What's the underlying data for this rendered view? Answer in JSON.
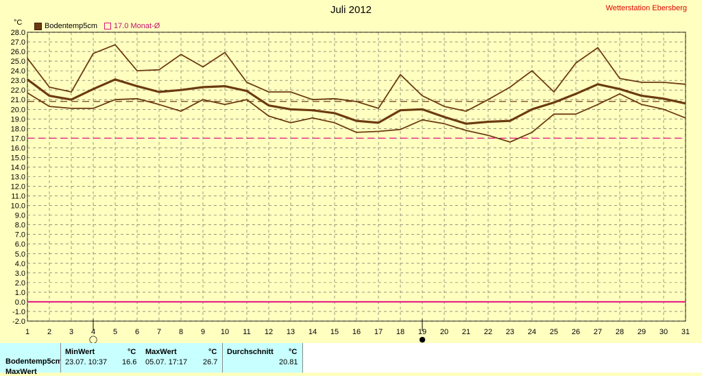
{
  "title": "Juli 2012",
  "station": "Wetterstation Ebersberg",
  "unit_label": "°C",
  "legend": {
    "series": "Bodentemp5cm",
    "monthly_avg": "17.0 Monat-Ø"
  },
  "colors": {
    "background": "#ffffc0",
    "series": "#6b3a10",
    "monthly_avg_line": "#e0107f",
    "zero_line": "#e0107f",
    "avg_line": "#6b3a10",
    "stats_bg": "#c8ffff"
  },
  "markers": {
    "day4": "◯",
    "day19": "●"
  },
  "stats": {
    "row_label": "Bodentemp5cm",
    "row2_label": "MaxWert",
    "min": {
      "header": "MinWert",
      "unit": "°C",
      "when": "23.07.  10:37",
      "value": "16.6"
    },
    "max": {
      "header": "MaxWert",
      "unit": "°C",
      "when": "05.07.  17:17",
      "value": "26.7"
    },
    "avg": {
      "header": "Durchschnitt",
      "unit": "°C",
      "value": "20.81"
    }
  },
  "chart_data": {
    "type": "line",
    "x": [
      1,
      2,
      3,
      4,
      5,
      6,
      7,
      8,
      9,
      10,
      11,
      12,
      13,
      14,
      15,
      16,
      17,
      18,
      19,
      20,
      21,
      22,
      23,
      24,
      25,
      26,
      27,
      28,
      29,
      30,
      31
    ],
    "ylim": [
      -2,
      28
    ],
    "yticks": [
      "-2.0",
      "-1.0",
      "0.0",
      "1.0",
      "2.0",
      "3.0",
      "4.0",
      "5.0",
      "6.0",
      "7.0",
      "8.0",
      "9.0",
      "10.0",
      "11.0",
      "12.0",
      "13.0",
      "14.0",
      "15.0",
      "16.0",
      "17.0",
      "18.0",
      "19.0",
      "20.0",
      "21.0",
      "22.0",
      "23.0",
      "24.0",
      "25.0",
      "26.0",
      "27.0",
      "28.0"
    ],
    "xticks": [
      "1",
      "2",
      "3",
      "4",
      "5",
      "6",
      "7",
      "8",
      "9",
      "10",
      "11",
      "12",
      "13",
      "14",
      "15",
      "16",
      "17",
      "18",
      "19",
      "20",
      "21",
      "22",
      "23",
      "24",
      "25",
      "26",
      "27",
      "28",
      "29",
      "30",
      "31"
    ],
    "grid": true,
    "series": [
      {
        "role": "max",
        "values": [
          25.3,
          22.3,
          21.8,
          25.8,
          26.7,
          24.0,
          24.1,
          25.7,
          24.4,
          25.9,
          22.8,
          21.8,
          21.8,
          21.0,
          21.1,
          20.8,
          20.1,
          23.6,
          21.4,
          20.3,
          19.8,
          21.0,
          22.3,
          24.0,
          21.8,
          24.8,
          26.4,
          23.2,
          22.8,
          22.8,
          22.6
        ]
      },
      {
        "role": "mean",
        "values": [
          23.1,
          21.4,
          21.0,
          22.1,
          23.1,
          22.4,
          21.8,
          22.0,
          22.3,
          22.4,
          21.9,
          20.4,
          20.0,
          19.9,
          19.6,
          18.8,
          18.6,
          19.9,
          20.0,
          19.2,
          18.5,
          18.7,
          18.8,
          20.0,
          20.7,
          21.6,
          22.6,
          22.1,
          21.4,
          21.1,
          20.6
        ]
      },
      {
        "role": "min",
        "values": [
          21.7,
          20.3,
          20.1,
          20.1,
          21.0,
          21.1,
          20.5,
          19.8,
          21.0,
          20.5,
          21.0,
          19.3,
          18.6,
          19.1,
          18.6,
          17.6,
          17.7,
          17.9,
          18.9,
          18.5,
          17.8,
          17.3,
          16.6,
          17.6,
          19.5,
          19.5,
          20.5,
          21.6,
          20.5,
          20.0,
          19.1
        ]
      }
    ],
    "reference_lines": [
      {
        "label": "17.0 Monat-Ø",
        "value": 17.0
      },
      {
        "label": "",
        "value": 20.81
      },
      {
        "label": "",
        "value": 0.0
      }
    ]
  }
}
